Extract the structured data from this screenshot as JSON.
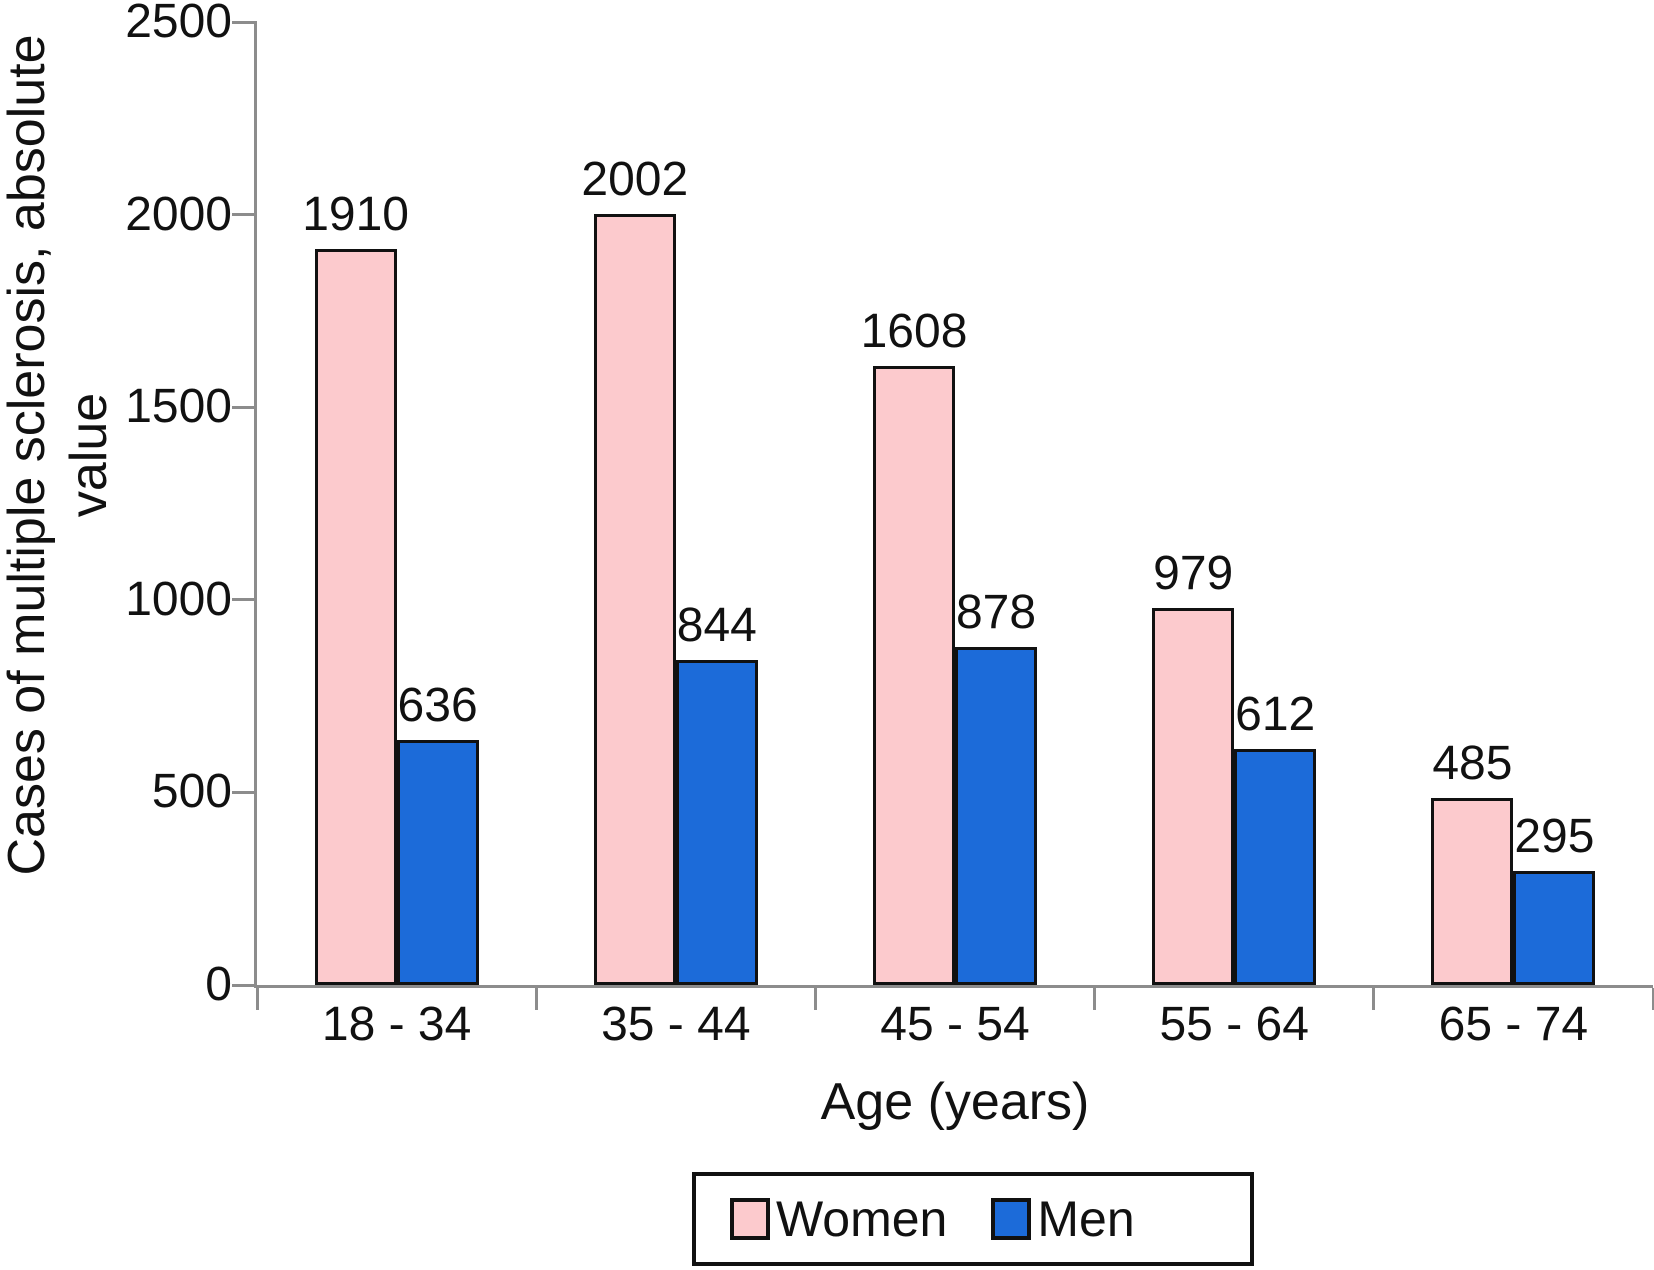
{
  "chart_data": {
    "type": "bar",
    "categories": [
      "18 - 34",
      "35 - 44",
      "45 - 54",
      "55 - 64",
      "65 - 74"
    ],
    "series": [
      {
        "name": "Women",
        "color": "#fccacd",
        "values": [
          1910,
          2002,
          1608,
          979,
          485
        ]
      },
      {
        "name": "Men",
        "color": "#1c6bd9",
        "values": [
          636,
          844,
          878,
          612,
          295
        ]
      }
    ],
    "title": "",
    "xlabel": "Age (years)",
    "ylabel": "Cases of multiple sclerosis, absolute value",
    "ylabel_lines": [
      "Cases of multiple sclerosis, absolute",
      "value"
    ],
    "ylim": [
      0,
      2500
    ],
    "yticks": [
      0,
      500,
      1000,
      1500,
      2000,
      2500
    ],
    "grid": false,
    "bar_value_labels": true,
    "legend_position": "bottom"
  },
  "colors": {
    "axis": "#8c8c8c",
    "bar_border": "#111111",
    "text": "#111111",
    "background": "#ffffff"
  }
}
